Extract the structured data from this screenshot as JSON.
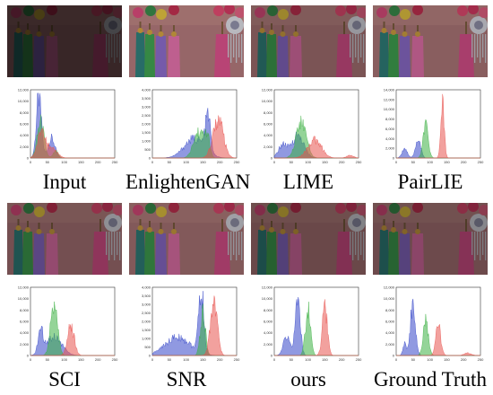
{
  "panels": [
    {
      "label": "Input",
      "brightness": 0.32,
      "hist_ticks": [
        "12,000",
        "10,000",
        "8,000",
        "6,000",
        "4,000",
        "2,000",
        "0"
      ]
    },
    {
      "label": "EnlightenGAN",
      "brightness": 0.85,
      "hist_ticks": [
        "4,000",
        "3,500",
        "3,000",
        "2,500",
        "2,000",
        "1,500",
        "1,000",
        "500",
        "0"
      ]
    },
    {
      "label": "LIME",
      "brightness": 0.7,
      "hist_ticks": [
        "12,000",
        "10,000",
        "8,000",
        "6,000",
        "4,000",
        "2,000",
        "0"
      ]
    },
    {
      "label": "PairLIE",
      "brightness": 0.78,
      "hist_ticks": [
        "14,000",
        "12,000",
        "10,000",
        "8,000",
        "6,000",
        "4,000",
        "2,000",
        "0"
      ]
    },
    {
      "label": "SCI",
      "brightness": 0.66,
      "hist_ticks": [
        "12,000",
        "10,000",
        "8,000",
        "6,000",
        "4,000",
        "2,000",
        "0"
      ]
    },
    {
      "label": "SNR",
      "brightness": 0.74,
      "hist_ticks": [
        "4,000",
        "3,500",
        "3,000",
        "2,500",
        "2,000",
        "1,500",
        "1,000",
        "500",
        "0"
      ]
    },
    {
      "label": "ours",
      "brightness": 0.6,
      "hist_ticks": [
        "12,000",
        "10,000",
        "8,000",
        "6,000",
        "4,000",
        "2,000",
        "0"
      ]
    },
    {
      "label": "Ground Truth",
      "brightness": 0.62,
      "hist_ticks": [
        "12,000",
        "10,000",
        "8,000",
        "6,000",
        "4,000",
        "2,000",
        "0"
      ]
    }
  ],
  "colors": {
    "red": "#e8534f",
    "green": "#3cb043",
    "blue": "#3546c8"
  }
}
